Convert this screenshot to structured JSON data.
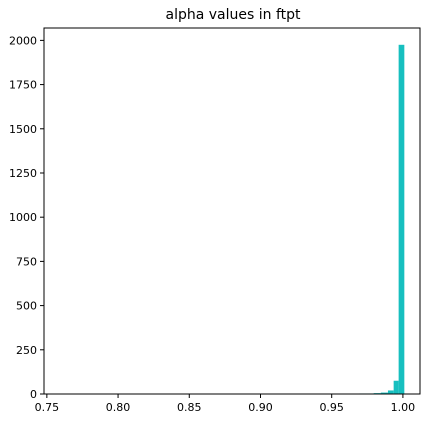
{
  "chart_data": {
    "type": "bar",
    "title": "alpha values in ftpt",
    "xlabel": "",
    "ylabel": "",
    "xlim": [
      0.748,
      1.012
    ],
    "ylim": [
      0,
      2070
    ],
    "x_ticks": [
      0.75,
      0.8,
      0.85,
      0.9,
      0.95,
      1.0
    ],
    "x_tick_labels": [
      "0.75",
      "0.80",
      "0.85",
      "0.90",
      "0.95",
      "1.00"
    ],
    "y_ticks": [
      0,
      250,
      500,
      750,
      1000,
      1250,
      1500,
      1750,
      2000
    ],
    "y_tick_labels": [
      "0",
      "250",
      "500",
      "750",
      "1000",
      "1250",
      "1500",
      "1750",
      "2000"
    ],
    "bar_color": "#17bfbf",
    "bins": [
      {
        "x0": 0.9695,
        "x1": 0.9745,
        "count": 3
      },
      {
        "x0": 0.9745,
        "x1": 0.9795,
        "count": 3
      },
      {
        "x0": 0.9795,
        "x1": 0.9845,
        "count": 5
      },
      {
        "x0": 0.9845,
        "x1": 0.9895,
        "count": 8
      },
      {
        "x0": 0.9895,
        "x1": 0.9935,
        "count": 20
      },
      {
        "x0": 0.9935,
        "x1": 0.997,
        "count": 75
      },
      {
        "x0": 0.997,
        "x1": 1.001,
        "count": 1975
      }
    ]
  }
}
